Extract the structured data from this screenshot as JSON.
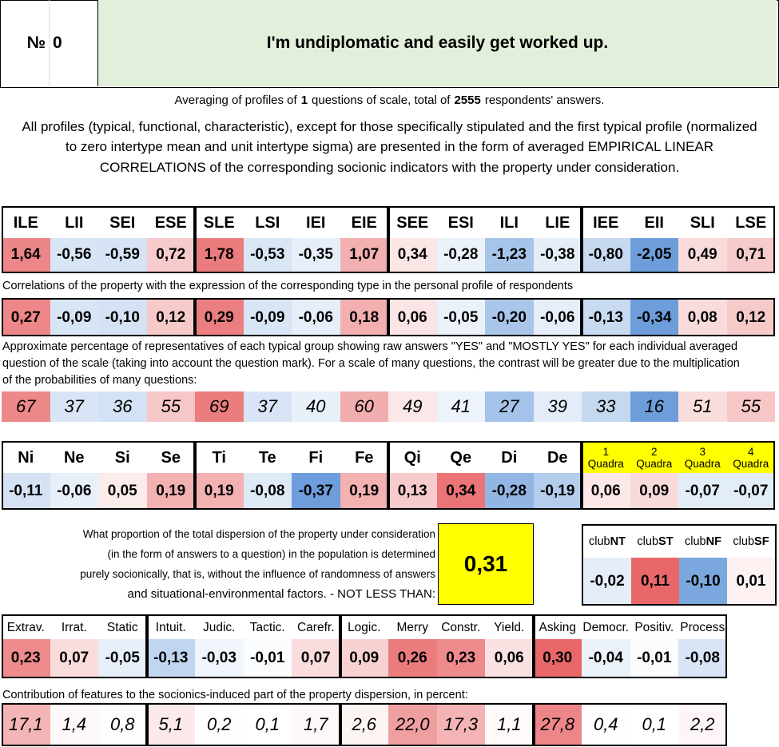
{
  "header": {
    "number_sign": "№",
    "number": "0",
    "title": "I'm undiplomatic and easily get worked up."
  },
  "averaging": {
    "prefix": "Averaging of profiles of",
    "questions": "1",
    "middle": "questions of scale, total of",
    "respondents": "2555",
    "suffix": "respondents' answers."
  },
  "description": "All profiles (typical, functional, characteristic), except for those specifically stipulated and the first typical profile (normalized to zero intertype mean and unit intertype sigma) are presented in the form of averaged EMPIRICAL LINEAR CORRELATIONS of the corresponding socionic indicators with the property under consideration.",
  "types": {
    "names": [
      "ILE",
      "LII",
      "SEI",
      "ESE",
      "SLE",
      "LSI",
      "IEI",
      "EIE",
      "SEE",
      "ESI",
      "ILI",
      "LIE",
      "IEE",
      "EII",
      "SLI",
      "LSE"
    ],
    "profile": [
      "1,64",
      "-0,56",
      "-0,59",
      "0,72",
      "1,78",
      "-0,53",
      "-0,35",
      "1,07",
      "0,34",
      "-0,28",
      "-1,23",
      "-0,38",
      "-0,80",
      "-2,05",
      "0,49",
      "0,71"
    ],
    "correlation_caption": "Correlations of the property with the expression of the corresponding type in the personal profile of respondents",
    "correlation": [
      "0,27",
      "-0,09",
      "-0,10",
      "0,12",
      "0,29",
      "-0,09",
      "-0,06",
      "0,18",
      "0,06",
      "-0,05",
      "-0,20",
      "-0,06",
      "-0,13",
      "-0,34",
      "0,08",
      "0,12"
    ],
    "percentage_caption": "Approximate percentage of representatives of each typical group showing raw answers \"YES\" and \"MOSTLY YES\" for each individual averaged question of the scale (taking into account the question mark). For a scale of many questions, the contrast will be greater due to the multiplication of the probabilities of many questions:",
    "percentage": [
      "67",
      "37",
      "36",
      "55",
      "69",
      "37",
      "40",
      "60",
      "49",
      "41",
      "27",
      "39",
      "33",
      "16",
      "51",
      "55"
    ]
  },
  "functions": {
    "names": [
      "Ni",
      "Ne",
      "Si",
      "Se",
      "Ti",
      "Te",
      "Fi",
      "Fe",
      "Qi",
      "Qe",
      "Di",
      "De"
    ],
    "quadras": [
      {
        "number": "1",
        "label": "Quadra"
      },
      {
        "number": "2",
        "label": "Quadra"
      },
      {
        "number": "3",
        "label": "Quadra"
      },
      {
        "number": "4",
        "label": "Quadra"
      }
    ],
    "values": [
      "-0,11",
      "-0,06",
      "0,05",
      "0,19",
      "0,19",
      "-0,08",
      "-0,37",
      "0,19",
      "0,13",
      "0,34",
      "-0,28",
      "-0,19",
      "0,06",
      "0,09",
      "-0,07",
      "-0,07"
    ]
  },
  "dispersion": {
    "lines": [
      "What proportion of the total dispersion of the property under consideration",
      "(in the form of answers to a question) in the population is determined",
      "purely socionically, that is, without the influence of randomness of answers",
      "and situational-environmental factors. - NOT LESS THAN:"
    ],
    "value": "0,31"
  },
  "clubs": {
    "names": [
      {
        "prefix": "club",
        "suffix": "NT"
      },
      {
        "prefix": "club",
        "suffix": "ST"
      },
      {
        "prefix": "club",
        "suffix": "NF"
      },
      {
        "prefix": "club",
        "suffix": "SF"
      }
    ],
    "values": [
      "-0,02",
      "0,11",
      "-0,10",
      "0,01"
    ]
  },
  "traits": {
    "names": [
      "Extrav.",
      "Irrat.",
      "Static",
      "Intuit.",
      "Judic.",
      "Tactic.",
      "Carefr.",
      "Logic.",
      "Merry",
      "Constr.",
      "Yield.",
      "Asking",
      "Democr.",
      "Positiv.",
      "Process"
    ],
    "values": [
      "0,23",
      "0,07",
      "-0,05",
      "-0,13",
      "-0,03",
      "-0,01",
      "0,07",
      "0,09",
      "0,26",
      "0,23",
      "0,06",
      "0,30",
      "-0,04",
      "-0,01",
      "-0,08"
    ],
    "contribution_caption": "Contribution of features to the sociоnics-induced part of the property dispersion, in percent:",
    "contribution": [
      "17,1",
      "1,4",
      "0,8",
      "5,1",
      "0,2",
      "0,1",
      "1,7",
      "2,6",
      "22,0",
      "17,3",
      "1,1",
      "27,8",
      "0,4",
      "0,1",
      "2,2"
    ]
  }
}
